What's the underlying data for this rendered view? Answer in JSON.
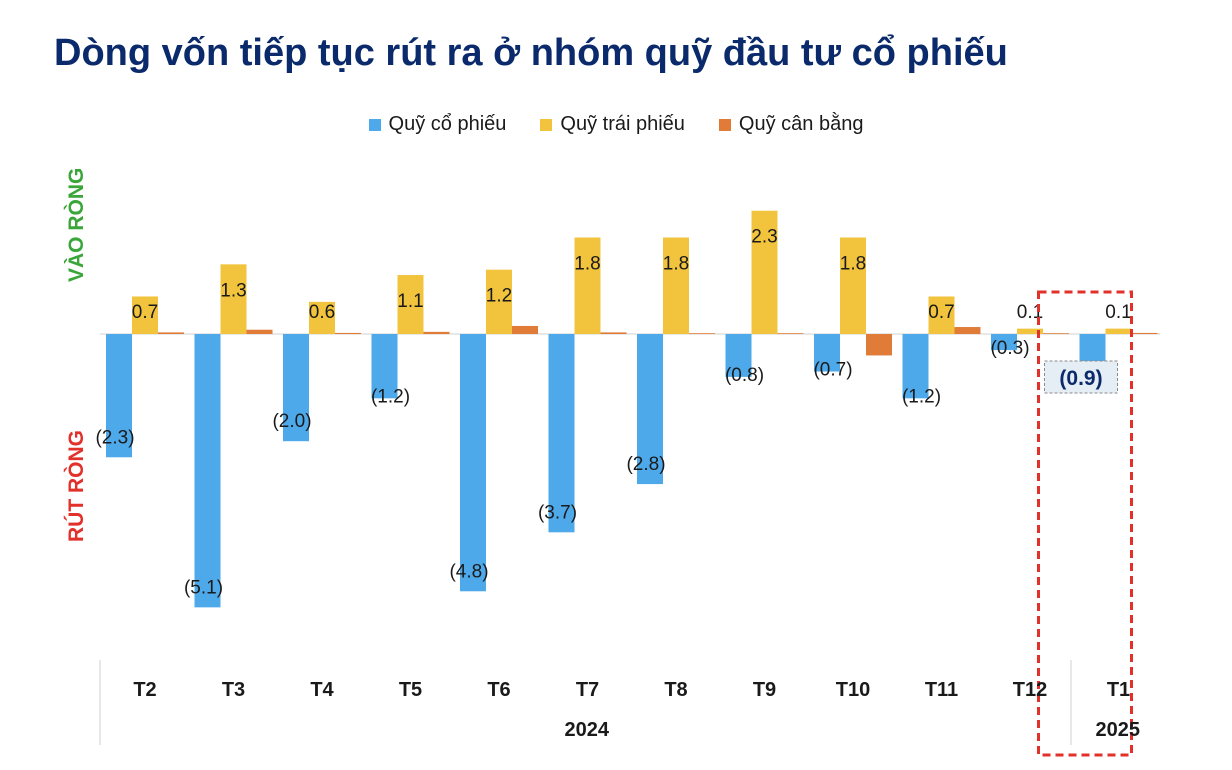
{
  "title": "Dòng vốn tiếp tục rút ra ở nhóm quỹ đầu tư cổ phiếu",
  "side_labels": {
    "inflow": "VÀO RÒNG",
    "outflow": "RÚT RÒNG"
  },
  "colors": {
    "equity": "#4ea9ea",
    "bond": "#f2c43d",
    "balanced": "#e07c38",
    "title": "#0b2a6b",
    "highlight": "#e2302a"
  },
  "chart_data": {
    "type": "bar",
    "title": "Dòng vốn tiếp tục rút ra ở nhóm quỹ đầu tư cổ phiếu",
    "categories": [
      "T2",
      "T3",
      "T4",
      "T5",
      "T6",
      "T7",
      "T8",
      "T9",
      "T10",
      "T11",
      "T12",
      "T1"
    ],
    "year_groups": [
      {
        "label": "2024",
        "count": 11
      },
      {
        "label": "2025",
        "count": 1
      }
    ],
    "series": [
      {
        "name": "Quỹ cổ phiếu",
        "color": "#4ea9ea",
        "values": [
          -2.3,
          -5.1,
          -2.0,
          -1.2,
          -4.8,
          -3.7,
          -2.8,
          -0.8,
          -0.7,
          -1.2,
          -0.3,
          -0.9
        ],
        "labels": [
          "(2.3)",
          "(5.1)",
          "(2.0)",
          "(1.2)",
          "(4.8)",
          "(3.7)",
          "(2.8)",
          "(0.8)",
          "(0.7)",
          "(1.2)",
          "(0.3)",
          "(0.9)"
        ]
      },
      {
        "name": "Quỹ trái phiếu",
        "color": "#f2c43d",
        "values": [
          0.7,
          1.3,
          0.6,
          1.1,
          1.2,
          1.8,
          1.8,
          2.3,
          1.8,
          0.7,
          0.1,
          0.1
        ],
        "labels": [
          "0.7",
          "1.3",
          "0.6",
          "1.1",
          "1.2",
          "1.8",
          "1.8",
          "2.3",
          "1.8",
          "0.7",
          "0.1",
          "0.1"
        ]
      },
      {
        "name": "Quỹ cân bằng",
        "color": "#e07c38",
        "values": [
          0.03,
          0.08,
          0.02,
          0.04,
          0.15,
          0.03,
          0.0,
          0.01,
          -0.4,
          0.13,
          0.01,
          0.02
        ],
        "labels": []
      }
    ],
    "ylim": [
      -5.1,
      2.3
    ],
    "highlight_category": "T1",
    "highlight_label": "(0.9)"
  }
}
